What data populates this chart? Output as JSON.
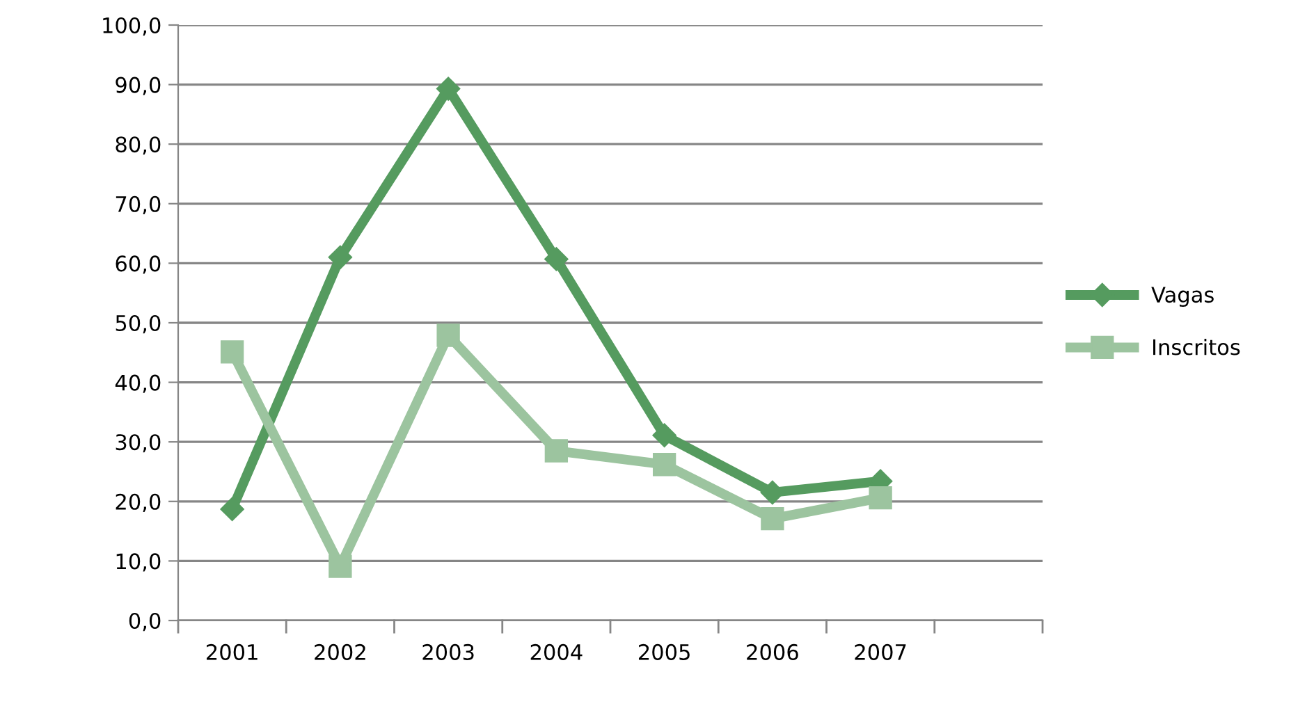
{
  "chart_data": {
    "type": "line",
    "categories": [
      "2001",
      "2002",
      "2003",
      "2004",
      "2005",
      "2006",
      "2007",
      null
    ],
    "series": [
      {
        "name": "Vagas",
        "color": "#559b5f",
        "marker": "diamond",
        "values": [
          18.7,
          61.0,
          89.3,
          60.7,
          31.1,
          21.5,
          23.4,
          null
        ]
      },
      {
        "name": "Inscritos",
        "color": "#9cc49f",
        "marker": "square",
        "values": [
          45.1,
          9.1,
          47.9,
          28.5,
          26.2,
          17.1,
          20.6,
          null
        ]
      }
    ],
    "ylim": [
      0,
      100
    ],
    "yticks": [
      {
        "value": 0,
        "label": "0,0"
      },
      {
        "value": 10,
        "label": "10,0"
      },
      {
        "value": 20,
        "label": "20,0"
      },
      {
        "value": 30,
        "label": "30,0"
      },
      {
        "value": 40,
        "label": "40,0"
      },
      {
        "value": 50,
        "label": "50,0"
      },
      {
        "value": 60,
        "label": "60,0"
      },
      {
        "value": 70,
        "label": "70,0"
      },
      {
        "value": 80,
        "label": "80,0"
      },
      {
        "value": 90,
        "label": "90,0"
      },
      {
        "value": 100,
        "label": "100,0"
      }
    ],
    "grid": "y",
    "legend": "right",
    "line_style": "solid"
  }
}
